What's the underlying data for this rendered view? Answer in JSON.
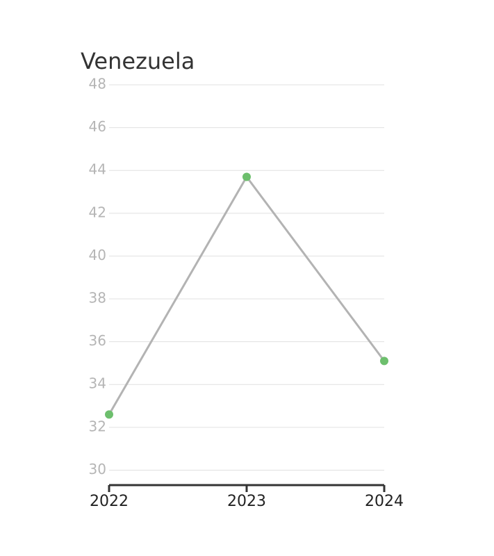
{
  "chart_data": {
    "type": "line",
    "title": "Venezuela",
    "x": [
      2022,
      2023,
      2024
    ],
    "values": [
      32.6,
      43.7,
      35.1
    ],
    "line_color": "#b3b3b3",
    "marker_color": "#6dbf6d",
    "xlim": [
      2022,
      2024
    ],
    "xticks": [
      2022,
      2023,
      2024
    ],
    "ylim": [
      29.3,
      48
    ],
    "yticks": [
      30,
      32,
      34,
      36,
      38,
      40,
      42,
      44,
      46,
      48
    ],
    "grid": true
  }
}
